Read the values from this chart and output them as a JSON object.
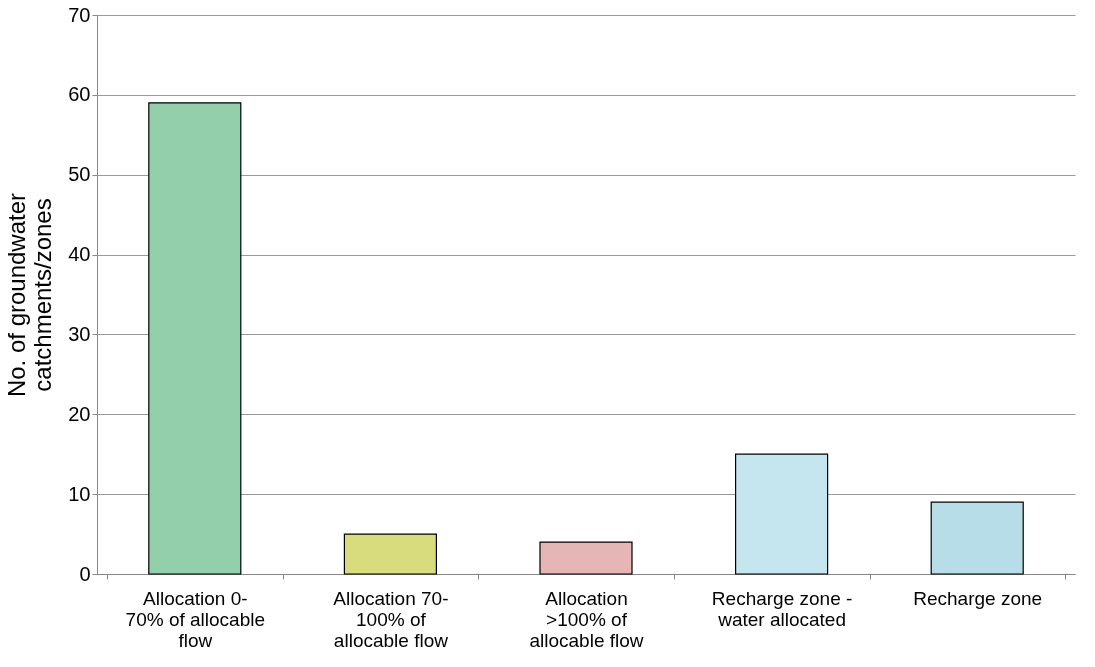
{
  "chart_data": {
    "type": "bar",
    "categories": [
      "Allocation 0-\n70% of allocable\nflow",
      "Allocation 70-\n100% of\nallocable flow",
      "Allocation\n>100% of\nallocable flow",
      "Recharge zone -\nwater allocated",
      "Recharge zone"
    ],
    "values": [
      59,
      5,
      4,
      15,
      9
    ],
    "colors": [
      "#93cfab",
      "#d9dc7c",
      "#e6b6b6",
      "#c5e6ee",
      "#b7dde8"
    ],
    "ylabel": "No. of groundwater\ncatchments/zones",
    "ylim": [
      0,
      70
    ],
    "yticks": [
      0,
      10,
      20,
      30,
      40,
      50,
      60,
      70
    ],
    "grid": "y"
  }
}
